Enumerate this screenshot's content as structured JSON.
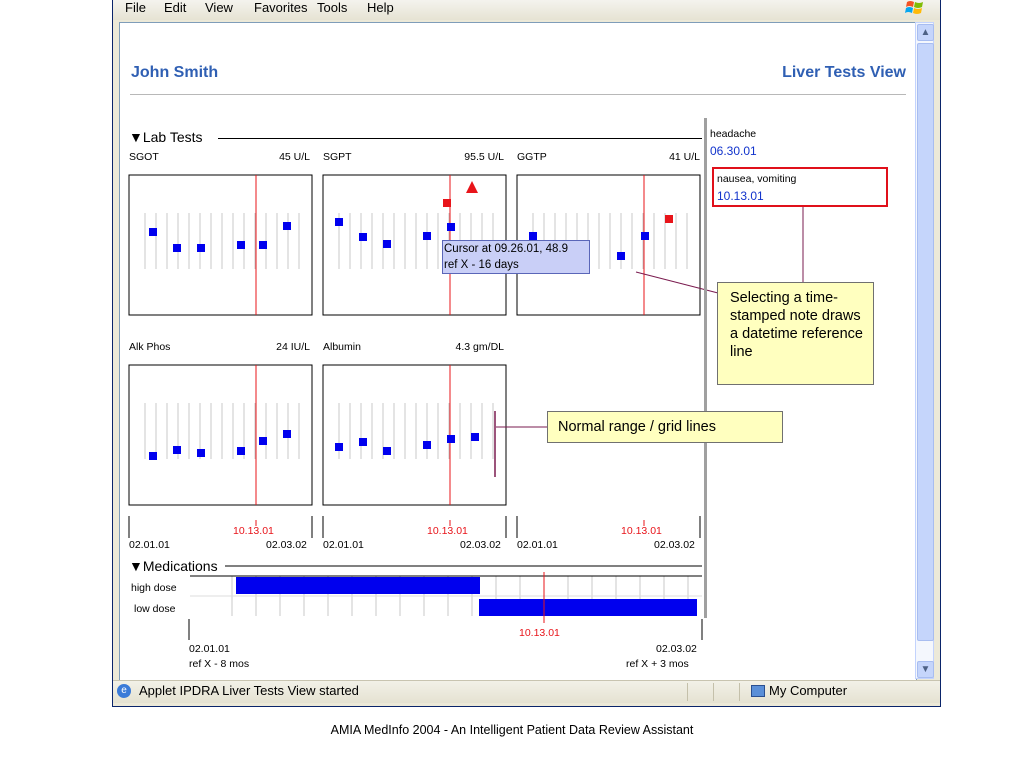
{
  "menu": {
    "items": [
      "File",
      "Edit",
      "View",
      "Favorites",
      "Tools",
      "Help"
    ]
  },
  "header": {
    "patient_name": "John Smith",
    "view_title": "Liver Tests View"
  },
  "lab_tests": {
    "section_label": "Lab Tests",
    "charts": [
      {
        "name": "SGOT",
        "value": "45 U/L",
        "x": [
          "02.01.01",
          "03.15.01",
          "04.20.01",
          "06.20.01",
          "07.30.01",
          "10.01.01",
          "11.20.01"
        ],
        "y": [
          0.55,
          0.44,
          0.44,
          0.45,
          0.45,
          null,
          0.64
        ]
      },
      {
        "name": "SGPT",
        "value": "95.5 U/L"
      },
      {
        "name": "GGTP",
        "value": "41 U/L"
      },
      {
        "name": "Alk Phos",
        "value": "24 IU/L"
      },
      {
        "name": "Albumin",
        "value": "4.3 gm/DL"
      }
    ],
    "date_start": "02.01.01",
    "date_end": "02.03.02",
    "ref_date": "10.13.01"
  },
  "tooltip": {
    "line1": "Cursor at 09.26.01, 48.9",
    "line2": "ref X - 16 days"
  },
  "notes": [
    {
      "text": "headache",
      "date": "06.30.01"
    },
    {
      "text": "nausea, vomiting",
      "date": "10.13.01"
    }
  ],
  "callouts": {
    "note_callout": "Selecting a time-stamped note draws a datetime reference line",
    "grid_callout": "Normal range / grid lines"
  },
  "medications": {
    "section_label": "Medications",
    "rows": [
      "high dose",
      "low dose"
    ],
    "ref_date": "10.13.01",
    "start_date": "02.01.01",
    "start_rel": "ref X - 8 mos",
    "end_date": "02.03.02",
    "end_rel": "ref X + 3 mos"
  },
  "status": {
    "text": "Applet IPDRA Liver Tests View started",
    "zone": "My Computer"
  },
  "caption": "AMIA MedInfo 2004 - An Intelligent Patient Data Review Assistant",
  "colors": {
    "accent_blue": "#2f5fb3",
    "data_point": "#0000ee",
    "ref_line": "#e8141a",
    "callout_bg": "#ffffbf"
  }
}
